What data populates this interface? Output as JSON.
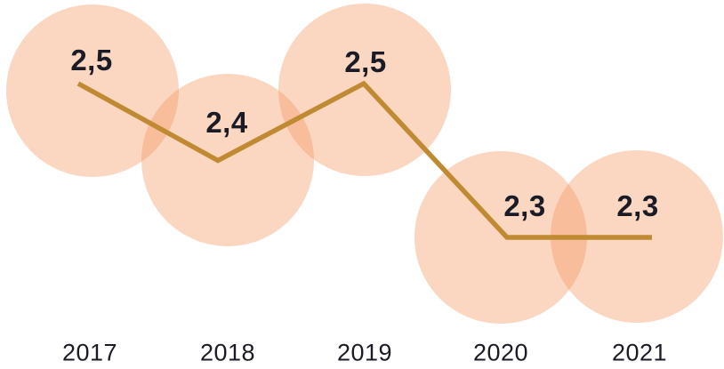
{
  "chart_data": {
    "type": "line",
    "title": "",
    "xlabel": "",
    "ylabel": "",
    "categories": [
      "2017",
      "2018",
      "2019",
      "2020",
      "2021"
    ],
    "values": [
      2.5,
      2.4,
      2.5,
      2.3,
      2.3
    ],
    "points": [
      {
        "year": "2017",
        "value": 2.5,
        "label": "2,5"
      },
      {
        "year": "2018",
        "value": 2.4,
        "label": "2,4"
      },
      {
        "year": "2019",
        "value": 2.5,
        "label": "2,5"
      },
      {
        "year": "2020",
        "value": 2.3,
        "label": "2,3"
      },
      {
        "year": "2021",
        "value": 2.3,
        "label": "2,3"
      }
    ],
    "ylim": [
      2.2,
      2.6
    ],
    "grid": false,
    "legend_position": "none"
  },
  "colors": {
    "line": "#C08A33",
    "bubble_fill": "#F38C50",
    "bubble_opacity": "0.35",
    "text": "#1B1B26",
    "background": "#FFFFFF"
  }
}
